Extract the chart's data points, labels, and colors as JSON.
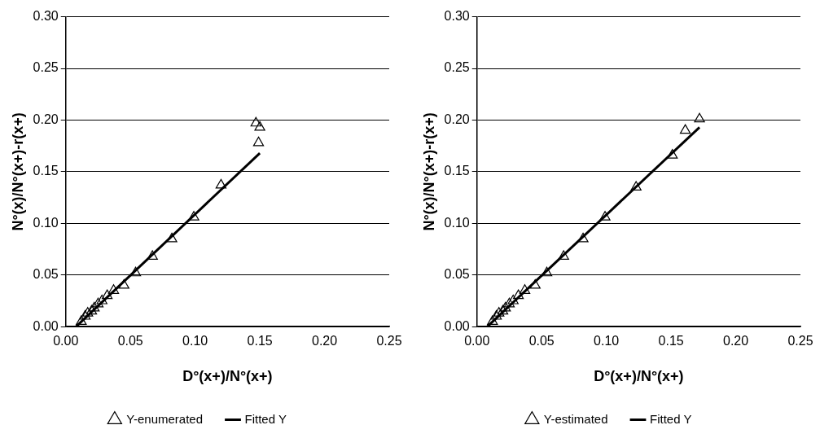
{
  "chart_data": [
    {
      "type": "scatter",
      "xlabel": "D°(x+)/N°(x+)",
      "ylabel": "N°(x)/N°(x+)-r(x+)",
      "xlim": [
        0,
        0.25
      ],
      "xticks": [
        {
          "value": 0,
          "label": "0.00"
        },
        {
          "value": 0.05,
          "label": "0.05"
        },
        {
          "value": 0.1,
          "label": "0.10"
        },
        {
          "value": 0.15,
          "label": "0.15"
        },
        {
          "value": 0.2,
          "label": "0.20"
        },
        {
          "value": 0.25,
          "label": "0.25"
        }
      ],
      "ylim": [
        0,
        0.3
      ],
      "yticks": [
        {
          "value": 0,
          "label": "0.00"
        },
        {
          "value": 0.05,
          "label": "0.05"
        },
        {
          "value": 0.1,
          "label": "0.10"
        },
        {
          "value": 0.15,
          "label": "0.15"
        },
        {
          "value": 0.2,
          "label": "0.20"
        },
        {
          "value": 0.25,
          "label": "0.25"
        },
        {
          "value": 0.3,
          "label": "0.30"
        }
      ],
      "grid": "y",
      "legend": "bottom",
      "series": [
        {
          "name": "Y-enumerated",
          "type": "scatter",
          "marker": "triangle",
          "color": "#000000",
          "x": [
            0.012,
            0.015,
            0.017,
            0.02,
            0.022,
            0.025,
            0.028,
            0.032,
            0.037,
            0.045,
            0.054,
            0.067,
            0.082,
            0.099,
            0.12,
            0.149,
            0.15,
            0.147
          ],
          "values": [
            0.005,
            0.01,
            0.013,
            0.015,
            0.018,
            0.022,
            0.025,
            0.03,
            0.035,
            0.04,
            0.052,
            0.068,
            0.085,
            0.106,
            0.137,
            0.178,
            0.193,
            0.197
          ]
        },
        {
          "name": "Fitted Y",
          "type": "line",
          "marker": "none",
          "color": "#000000",
          "x": [
            0.008,
            0.15
          ],
          "values": [
            0,
            0.168
          ]
        }
      ]
    },
    {
      "type": "scatter",
      "xlabel": "D°(x+)/N°(x+)",
      "ylabel": "N°(x)/N°(x+)-r(x+)",
      "xlim": [
        0,
        0.25
      ],
      "xticks": [
        {
          "value": 0,
          "label": "0.00"
        },
        {
          "value": 0.05,
          "label": "0.05"
        },
        {
          "value": 0.1,
          "label": "0.10"
        },
        {
          "value": 0.15,
          "label": "0.15"
        },
        {
          "value": 0.2,
          "label": "0.20"
        },
        {
          "value": 0.25,
          "label": "0.25"
        }
      ],
      "ylim": [
        0,
        0.3
      ],
      "yticks": [
        {
          "value": 0,
          "label": "0.00"
        },
        {
          "value": 0.05,
          "label": "0.05"
        },
        {
          "value": 0.1,
          "label": "0.10"
        },
        {
          "value": 0.15,
          "label": "0.15"
        },
        {
          "value": 0.2,
          "label": "0.20"
        },
        {
          "value": 0.25,
          "label": "0.25"
        },
        {
          "value": 0.3,
          "label": "0.30"
        }
      ],
      "grid": "y",
      "legend": "bottom",
      "series": [
        {
          "name": "Y-estimated",
          "type": "scatter",
          "marker": "triangle",
          "color": "#000000",
          "x": [
            0.012,
            0.015,
            0.017,
            0.02,
            0.022,
            0.025,
            0.028,
            0.032,
            0.037,
            0.045,
            0.054,
            0.067,
            0.082,
            0.099,
            0.123,
            0.151,
            0.161,
            0.172
          ],
          "values": [
            0.005,
            0.01,
            0.013,
            0.015,
            0.018,
            0.022,
            0.025,
            0.03,
            0.035,
            0.04,
            0.052,
            0.068,
            0.085,
            0.106,
            0.135,
            0.166,
            0.19,
            0.201
          ]
        },
        {
          "name": "Fitted Y",
          "type": "line",
          "marker": "none",
          "color": "#000000",
          "x": [
            0.008,
            0.172
          ],
          "values": [
            0,
            0.193
          ]
        }
      ]
    }
  ]
}
